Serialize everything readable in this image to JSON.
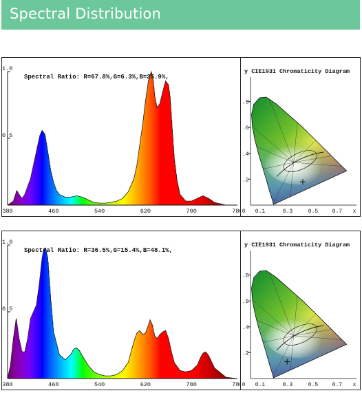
{
  "header": {
    "title": "Spectral Distribution",
    "color": "#6cc79a"
  },
  "chart_data": [
    {
      "type": "area",
      "annotation": "Spectral Ratio:  R=67.8%,G=6.3%,B=25.9%,",
      "x_ticks": [
        "380",
        "460",
        "540",
        "620",
        "700",
        "780"
      ],
      "y_ticks": [
        "1.0",
        "0.5"
      ],
      "xlim": [
        380,
        780
      ],
      "ylim": [
        0,
        1.0
      ],
      "x": [
        380,
        390,
        396,
        400,
        405,
        410,
        420,
        430,
        436,
        440,
        445,
        450,
        455,
        460,
        465,
        470,
        480,
        490,
        500,
        510,
        520,
        530,
        540,
        550,
        560,
        570,
        580,
        590,
        600,
        605,
        610,
        615,
        620,
        625,
        630,
        633,
        636,
        640,
        645,
        650,
        655,
        660,
        663,
        666,
        670,
        675,
        680,
        690,
        700,
        710,
        720,
        730,
        740,
        760,
        780
      ],
      "values": [
        0,
        0.03,
        0.11,
        0.08,
        0.05,
        0.08,
        0.2,
        0.4,
        0.52,
        0.56,
        0.53,
        0.4,
        0.26,
        0.17,
        0.11,
        0.08,
        0.06,
        0.06,
        0.07,
        0.06,
        0.04,
        0.02,
        0.015,
        0.015,
        0.02,
        0.03,
        0.05,
        0.1,
        0.2,
        0.3,
        0.45,
        0.6,
        0.78,
        0.93,
        1.0,
        0.95,
        0.82,
        0.73,
        0.76,
        0.85,
        0.93,
        0.9,
        0.8,
        0.6,
        0.35,
        0.18,
        0.08,
        0.03,
        0.03,
        0.05,
        0.07,
        0.05,
        0.02,
        0,
        0
      ]
    },
    {
      "type": "scatter",
      "title": "y  CIE1931 Chromaticity Diagram",
      "x_ticks": [
        "0",
        "0.1",
        "0.3",
        "0.5",
        "0.7",
        "x"
      ],
      "y_ticks": [
        ".8",
        ".6",
        ".4",
        ".2"
      ],
      "xlim": [
        0,
        0.8
      ],
      "ylim": [
        0,
        0.9
      ],
      "point": {
        "x": 0.4,
        "y": 0.18
      }
    },
    {
      "type": "area",
      "annotation": "Spectral Ratio:  R=36.5%,G=15.4%,B=48.1%,",
      "x_ticks": [
        "380",
        "460",
        "540",
        "620",
        "700",
        "780"
      ],
      "y_ticks": [
        "1.0",
        "0.5"
      ],
      "xlim": [
        380,
        780
      ],
      "ylim": [
        0,
        1.0
      ],
      "x": [
        380,
        385,
        390,
        395,
        400,
        405,
        410,
        415,
        420,
        425,
        430,
        435,
        440,
        443,
        446,
        450,
        455,
        460,
        470,
        480,
        490,
        495,
        500,
        505,
        510,
        520,
        530,
        540,
        550,
        560,
        570,
        580,
        590,
        595,
        600,
        605,
        610,
        615,
        620,
        625,
        628,
        632,
        636,
        640,
        645,
        650,
        655,
        660,
        665,
        670,
        680,
        690,
        700,
        710,
        715,
        720,
        725,
        730,
        740,
        760,
        780
      ],
      "values": [
        0,
        0.1,
        0.3,
        0.45,
        0.3,
        0.2,
        0.2,
        0.3,
        0.45,
        0.5,
        0.55,
        0.7,
        0.9,
        0.97,
        0.98,
        0.9,
        0.6,
        0.35,
        0.18,
        0.14,
        0.18,
        0.22,
        0.23,
        0.21,
        0.17,
        0.1,
        0.05,
        0.03,
        0.02,
        0.02,
        0.03,
        0.06,
        0.12,
        0.2,
        0.28,
        0.34,
        0.36,
        0.33,
        0.34,
        0.4,
        0.44,
        0.4,
        0.32,
        0.3,
        0.33,
        0.35,
        0.36,
        0.3,
        0.2,
        0.12,
        0.06,
        0.05,
        0.06,
        0.1,
        0.15,
        0.19,
        0.2,
        0.17,
        0.08,
        0.01,
        0
      ]
    },
    {
      "type": "scatter",
      "title": "y  CIE1931 Chromaticity Diagram",
      "x_ticks": [
        "0",
        "0.1",
        "0.3",
        "0.5",
        "0.7",
        "x"
      ],
      "y_ticks": [
        ".8",
        ".6",
        ".4",
        ".2"
      ],
      "xlim": [
        0,
        0.8
      ],
      "ylim": [
        0,
        0.9
      ],
      "point": {
        "x": 0.28,
        "y": 0.13
      }
    }
  ]
}
